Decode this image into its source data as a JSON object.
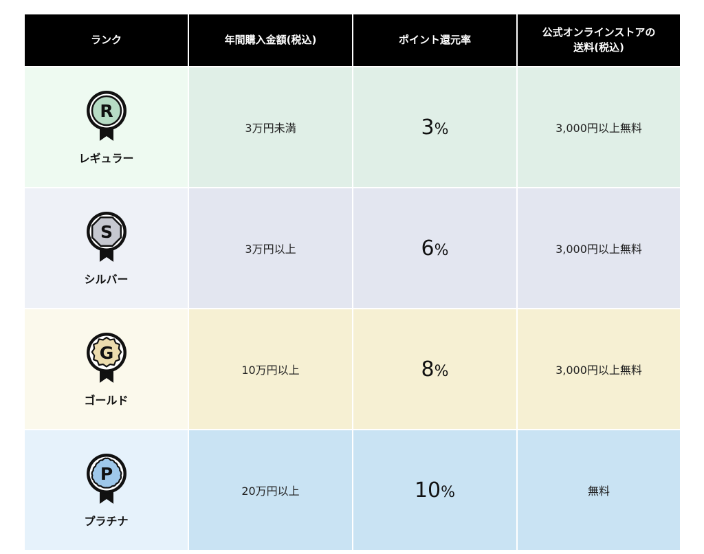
{
  "headers": [
    {
      "line1": "ランク",
      "line2": ""
    },
    {
      "line1": "年間購入金額(税込)",
      "line2": ""
    },
    {
      "line1": "ポイント還元率",
      "line2": ""
    },
    {
      "line1": "公式オンラインストアの",
      "line2": "送料(税込)"
    }
  ],
  "ranks": [
    {
      "letter": "R",
      "name": "レギュラー",
      "purchase": "3万円未満",
      "rate_num": "3",
      "rate_unit": "%",
      "shipping": "3,000円以上無料",
      "badge_fill": "#b7dcc5"
    },
    {
      "letter": "S",
      "name": "シルバー",
      "purchase": "3万円以上",
      "rate_num": "6",
      "rate_unit": "%",
      "shipping": "3,000円以上無料",
      "badge_fill": "#c6c8d0"
    },
    {
      "letter": "G",
      "name": "ゴールド",
      "purchase": "10万円以上",
      "rate_num": "8",
      "rate_unit": "%",
      "shipping": "3,000円以上無料",
      "badge_fill": "#ecdcae"
    },
    {
      "letter": "P",
      "name": "プラチナ",
      "purchase": "20万円以上",
      "rate_num": "10",
      "rate_unit": "%",
      "shipping": "無料",
      "badge_fill": "#9fc8ea"
    }
  ]
}
